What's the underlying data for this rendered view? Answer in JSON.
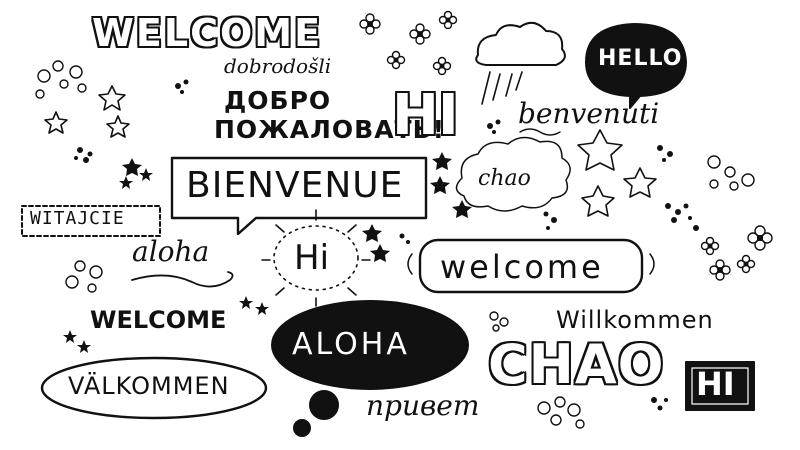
{
  "greetings": {
    "welcome_top": "WELCOME",
    "dobrodosli": "dobrodošli",
    "dobro_pozhalovat_line1": "ДОБРО",
    "dobro_pozhalovat_line2": "ПОЖАЛОВАТЬ!",
    "hi_block": "HI",
    "hello": "HELLO",
    "benvenuti": "benvenuti",
    "chao_cloud": "chao",
    "bienvenue": "BIENVENUE",
    "witajcie": "WITAJCIE",
    "aloha_script": "aloha",
    "hi_sun": "Hi",
    "welcome_pill": "welcome",
    "welcome_bold": "WELCOME",
    "willkommen": "Willkommen",
    "aloha_bubble": "ALOHA",
    "chao_big": "CHAO",
    "hi_box": "HI",
    "valkommen": "VÄLKOMMEN",
    "privet": "привет"
  },
  "style": {
    "ink_color": "#111111",
    "background_color": "#ffffff"
  }
}
